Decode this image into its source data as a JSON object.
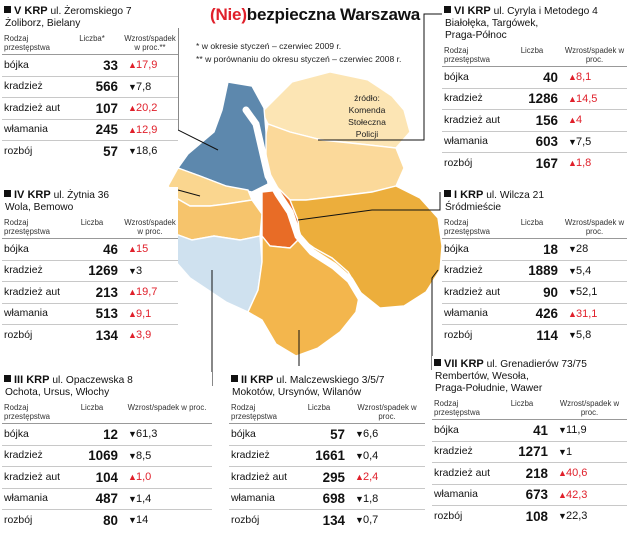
{
  "title": {
    "highlight": "(Nie)",
    "rest": "bezpieczna Warszawa"
  },
  "notes": [
    "* w okresie styczeń – czerwiec 2009 r.",
    "** w porównaniu do okresu styczeń – czerwiec 2008 r."
  ],
  "source": [
    "źródło:",
    "Komenda",
    "Stołeczna",
    "Policji"
  ],
  "colors": {
    "red": "#e0202b",
    "zoliborz": "#5d88ad",
    "bialoleka": "#fce5b4",
    "targowek": "#fbd99a",
    "wola": "#f6c46c",
    "bemowo": "#fad68f",
    "srodmiescie": "#e86c26",
    "praga": "#ecae3c",
    "ochota": "#cfe1ef",
    "mokotow": "#f3b64d",
    "river": "#ffffff"
  },
  "boxes": {
    "v": {
      "krp": "V KRP",
      "addr": "ul. Żeromskiego 7",
      "area": [
        "Żoliborz, Bielany"
      ],
      "headers": {
        "crime": "Rodzaj przestępstwa",
        "count": "Liczba*",
        "change": "Wzrost/spadek w proc.**"
      },
      "rows": [
        {
          "label": "bójka",
          "count": "33",
          "dir": "up",
          "change": "17,9"
        },
        {
          "label": "kradzież",
          "count": "566",
          "dir": "down",
          "change": "7,8"
        },
        {
          "label": "kradzież aut",
          "count": "107",
          "dir": "up",
          "change": "20,2"
        },
        {
          "label": "włamania",
          "count": "245",
          "dir": "up",
          "change": "12,9"
        },
        {
          "label": "rozbój",
          "count": "57",
          "dir": "down",
          "change": "18,6"
        }
      ]
    },
    "iv": {
      "krp": "IV KRP",
      "addr": "ul. Żytnia 36",
      "area": [
        "Wola, Bemowo"
      ],
      "headers": {
        "crime": "Rodzaj przestępstwa",
        "count": "Liczba",
        "change": "Wzrost/spadek w proc."
      },
      "rows": [
        {
          "label": "bójka",
          "count": "46",
          "dir": "up",
          "change": "15"
        },
        {
          "label": "kradzież",
          "count": "1269",
          "dir": "down",
          "change": "3"
        },
        {
          "label": "kradzież aut",
          "count": "213",
          "dir": "up",
          "change": "19,7"
        },
        {
          "label": "włamania",
          "count": "513",
          "dir": "up",
          "change": "9,1"
        },
        {
          "label": "rozbój",
          "count": "134",
          "dir": "up",
          "change": "3,9"
        }
      ]
    },
    "iii": {
      "krp": "III KRP",
      "addr": "ul. Opaczewska 8",
      "area": [
        "Ochota, Ursus, Włochy"
      ],
      "headers": {
        "crime": "Rodzaj przestępstwa",
        "count": "Liczba",
        "change": "Wzrost/spadek w proc."
      },
      "rows": [
        {
          "label": "bójka",
          "count": "12",
          "dir": "down",
          "change": "61,3"
        },
        {
          "label": "kradzież",
          "count": "1069",
          "dir": "down",
          "change": "8,5"
        },
        {
          "label": "kradzież aut",
          "count": "104",
          "dir": "up",
          "change": "1,0"
        },
        {
          "label": "włamania",
          "count": "487",
          "dir": "down",
          "change": "1,4"
        },
        {
          "label": "rozbój",
          "count": "80",
          "dir": "down",
          "change": "14"
        }
      ]
    },
    "ii": {
      "krp": "II KRP",
      "addr": "ul. Malczewskiego 3/5/7",
      "area": [
        "Mokotów, Ursynów, Wilanów"
      ],
      "headers": {
        "crime": "Rodzaj przestępstwa",
        "count": "Liczba",
        "change": "Wzrost/spadek w proc."
      },
      "rows": [
        {
          "label": "bójka",
          "count": "57",
          "dir": "down",
          "change": "6,6"
        },
        {
          "label": "kradzież",
          "count": "1661",
          "dir": "down",
          "change": "0,4"
        },
        {
          "label": "kradzież aut",
          "count": "295",
          "dir": "up",
          "change": "2,4"
        },
        {
          "label": "włamania",
          "count": "698",
          "dir": "down",
          "change": "1,8"
        },
        {
          "label": "rozbój",
          "count": "134",
          "dir": "down",
          "change": "0,7"
        }
      ]
    },
    "vi": {
      "krp": "VI KRP",
      "addr": "ul. Cyryla i Metodego 4",
      "area": [
        "Białołęka, Targówek,",
        "Praga-Północ"
      ],
      "headers": {
        "crime": "Rodzaj przestępstwa",
        "count": "Liczba",
        "change": "Wzrost/spadek w proc."
      },
      "rows": [
        {
          "label": "bójka",
          "count": "40",
          "dir": "up",
          "change": "8,1"
        },
        {
          "label": "kradzież",
          "count": "1286",
          "dir": "up",
          "change": "14,5"
        },
        {
          "label": "kradzież aut",
          "count": "156",
          "dir": "up",
          "change": "4"
        },
        {
          "label": "włamania",
          "count": "603",
          "dir": "down",
          "change": "7,5"
        },
        {
          "label": "rozbój",
          "count": "167",
          "dir": "up",
          "change": "1,8"
        }
      ]
    },
    "i": {
      "krp": "I KRP",
      "addr": "ul. Wilcza 21",
      "area": [
        "Śródmieście"
      ],
      "headers": {
        "crime": "Rodzaj przestępstwa",
        "count": "Liczba",
        "change": "Wzrost/spadek w proc."
      },
      "rows": [
        {
          "label": "bójka",
          "count": "18",
          "dir": "down",
          "change": "28"
        },
        {
          "label": "kradzież",
          "count": "1889",
          "dir": "down",
          "change": "5,4"
        },
        {
          "label": "kradzież aut",
          "count": "90",
          "dir": "down",
          "change": "52,1"
        },
        {
          "label": "włamania",
          "count": "426",
          "dir": "up",
          "change": "31,1"
        },
        {
          "label": "rozbój",
          "count": "114",
          "dir": "down",
          "change": "5,8"
        }
      ]
    },
    "vii": {
      "krp": "VII KRP",
      "addr": "ul. Grenadierów 73/75",
      "area": [
        "Rembertów, Wesoła,",
        "Praga-Południe, Wawer"
      ],
      "headers": {
        "crime": "Rodzaj przestępstwa",
        "count": "Liczba",
        "change": "Wzrost/spadek w proc."
      },
      "rows": [
        {
          "label": "bójka",
          "count": "41",
          "dir": "down",
          "change": "11,9"
        },
        {
          "label": "kradzież",
          "count": "1271",
          "dir": "down",
          "change": "1"
        },
        {
          "label": "kradzież aut",
          "count": "218",
          "dir": "up",
          "change": "40,6"
        },
        {
          "label": "włamania",
          "count": "673",
          "dir": "up",
          "change": "42,3"
        },
        {
          "label": "rozbój",
          "count": "108",
          "dir": "down",
          "change": "22,3"
        }
      ]
    }
  }
}
